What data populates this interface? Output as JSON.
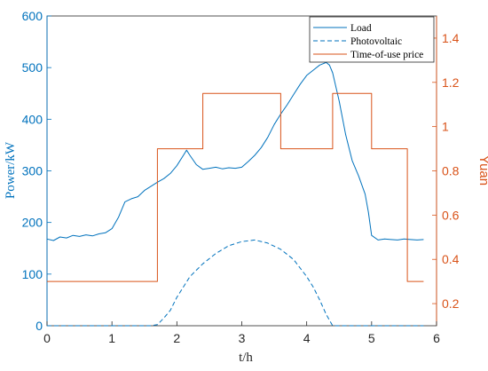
{
  "chart_data": {
    "type": "line",
    "xlabel": "t/h",
    "ylabel_left": "Power/kW",
    "ylabel_right": "Yuan",
    "xlim": [
      0,
      6
    ],
    "ylim_left": [
      0,
      600
    ],
    "ylim_right": [
      0.1,
      1.5
    ],
    "x_ticks": [
      "0",
      "1",
      "2",
      "3",
      "4",
      "5",
      "6"
    ],
    "y_ticks_left": [
      "0",
      "100",
      "200",
      "300",
      "400",
      "500",
      "600"
    ],
    "y_ticks_right": [
      "0.2",
      "0.4",
      "0.6",
      "0.8",
      "1",
      "1.2",
      "1.4"
    ],
    "grid": false,
    "legend_position": "top-right",
    "colors": {
      "left_axis": "#0072bd",
      "right_axis": "#d95319",
      "load": "#0072bd",
      "pv": "#0072bd",
      "price": "#d95319"
    },
    "series": [
      {
        "name": "Load",
        "axis": "left",
        "style": "solid",
        "x": [
          0,
          0.1,
          0.2,
          0.3,
          0.4,
          0.5,
          0.6,
          0.7,
          0.8,
          0.9,
          1.0,
          1.1,
          1.2,
          1.3,
          1.4,
          1.5,
          1.6,
          1.7,
          1.8,
          1.9,
          2.0,
          2.1,
          2.15,
          2.2,
          2.3,
          2.4,
          2.5,
          2.6,
          2.7,
          2.8,
          2.9,
          3.0,
          3.1,
          3.2,
          3.3,
          3.4,
          3.5,
          3.6,
          3.7,
          3.8,
          3.9,
          4.0,
          4.1,
          4.2,
          4.3,
          4.35,
          4.4,
          4.5,
          4.6,
          4.7,
          4.8,
          4.9,
          4.95,
          5.0,
          5.1,
          5.2,
          5.3,
          5.4,
          5.5,
          5.6,
          5.7,
          5.8
        ],
        "values": [
          168,
          165,
          172,
          170,
          175,
          173,
          176,
          174,
          178,
          180,
          188,
          210,
          240,
          246,
          250,
          262,
          270,
          278,
          285,
          295,
          310,
          330,
          340,
          330,
          312,
          303,
          305,
          307,
          304,
          306,
          305,
          307,
          318,
          330,
          345,
          365,
          390,
          410,
          428,
          448,
          468,
          485,
          495,
          505,
          510,
          505,
          490,
          435,
          370,
          320,
          290,
          255,
          220,
          175,
          166,
          168,
          167,
          166,
          168,
          167,
          166,
          167
        ]
      },
      {
        "name": "Photovoltaic",
        "axis": "left",
        "style": "dashed",
        "x": [
          0,
          0.5,
          1.0,
          1.5,
          1.6,
          1.7,
          1.8,
          1.9,
          2.0,
          2.2,
          2.4,
          2.6,
          2.8,
          3.0,
          3.2,
          3.4,
          3.6,
          3.8,
          4.0,
          4.1,
          4.2,
          4.3,
          4.4,
          5.0,
          5.8
        ],
        "values": [
          0,
          0,
          0,
          0,
          0,
          2,
          15,
          30,
          55,
          95,
          120,
          140,
          155,
          163,
          166,
          160,
          148,
          128,
          95,
          75,
          50,
          22,
          0,
          0,
          0
        ]
      },
      {
        "name": "Time-of-use price",
        "axis": "right",
        "style": "step",
        "x": [
          0,
          1.7,
          1.7,
          2.4,
          2.4,
          3.6,
          3.6,
          4.4,
          4.4,
          5.0,
          5.0,
          5.55,
          5.55,
          5.8
        ],
        "values": [
          0.3,
          0.3,
          0.9,
          0.9,
          1.15,
          1.15,
          0.9,
          0.9,
          1.15,
          1.15,
          0.9,
          0.9,
          0.3,
          0.3
        ]
      }
    ]
  }
}
